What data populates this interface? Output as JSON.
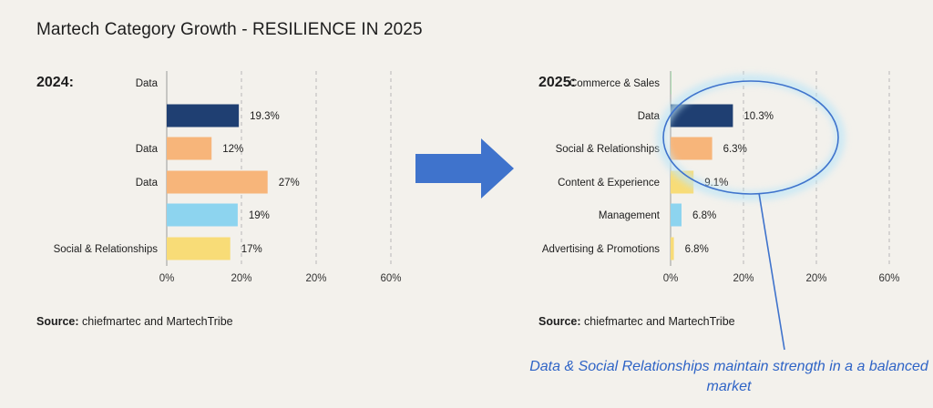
{
  "title": "Martech Category Growth - RESILIENCE IN 2025",
  "panels": [
    {
      "year_label": "2024:",
      "source_label": "Source:",
      "source_text": "chiefmartec and MartechTribe"
    },
    {
      "year_label": "2025:",
      "source_label": "Source:",
      "source_text": "chiefmartec and MartechTribe"
    }
  ],
  "annotation": "Data & Social Relationships maintain strength in a a balanced market",
  "colors": {
    "navy": "#1f3f72",
    "orange": "#f7b57a",
    "lightblue": "#8dd4ef",
    "yellow": "#f8dc77",
    "arrow": "#3f73cc",
    "annotation": "#2f64c6",
    "green": "#8fcf9a"
  },
  "chart_data": [
    {
      "type": "bar",
      "orientation": "horizontal",
      "categories": [
        "Data",
        "",
        "Data",
        "Data",
        "",
        "Social & Relationships"
      ],
      "values": [
        null,
        19.3,
        12,
        27,
        19,
        17
      ],
      "value_labels": [
        "",
        "19.3%",
        "12%",
        "27%",
        "19%",
        "17%"
      ],
      "bar_colors": [
        "navy",
        "navy",
        "orange",
        "orange",
        "lightblue",
        "yellow"
      ],
      "bar_scale_max": 60,
      "tick_labels": [
        "0%",
        "20%",
        "20%",
        "60%"
      ],
      "grid": true
    },
    {
      "type": "bar",
      "orientation": "horizontal",
      "categories": [
        "Commerce & Sales",
        "Data",
        "Social & Relationships",
        "Content & Experience",
        "Management",
        "Advertising & Promotions"
      ],
      "values": [
        0.2,
        10.3,
        6.3,
        9.1,
        6.8,
        6.8
      ],
      "value_labels": [
        "",
        "10.3%",
        "6.3%",
        "9.1%",
        "6.8%",
        "6.8%"
      ],
      "bar_colors": [
        "green",
        "navy",
        "orange",
        "yellow",
        "lightblue",
        "yellow"
      ],
      "bar_widths_pct_of_axis": [
        0.3,
        28.5,
        19.0,
        10.5,
        5.0,
        1.5
      ],
      "tick_labels": [
        "0%",
        "20%",
        "20%",
        "60%"
      ],
      "grid": true
    }
  ]
}
